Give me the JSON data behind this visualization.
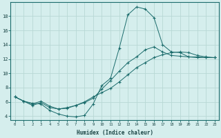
{
  "xlabel": "Humidex (Indice chaleur)",
  "bg_color": "#d5eeed",
  "line_color": "#1a6b6b",
  "grid_color": "#b8d8d5",
  "xlim_min": -0.5,
  "xlim_max": 23.5,
  "ylim_min": 3.5,
  "ylim_max": 20.0,
  "xticks": [
    0,
    1,
    2,
    3,
    4,
    5,
    6,
    7,
    8,
    9,
    10,
    11,
    12,
    13,
    14,
    15,
    16,
    17,
    18,
    19,
    20,
    21,
    22,
    23
  ],
  "yticks": [
    4,
    6,
    8,
    10,
    12,
    14,
    16,
    18
  ],
  "line1_x": [
    0,
    1,
    2,
    3,
    4,
    5,
    6,
    7,
    8,
    9,
    10,
    11,
    12,
    13,
    14,
    15,
    16,
    17,
    18,
    19,
    20,
    21,
    22,
    23
  ],
  "line1_y": [
    6.7,
    6.1,
    5.8,
    5.7,
    4.8,
    4.3,
    4.0,
    3.9,
    4.1,
    5.7,
    8.3,
    9.3,
    13.5,
    18.2,
    19.3,
    19.0,
    17.8,
    14.0,
    13.0,
    12.9,
    12.3,
    12.2,
    12.2,
    12.2
  ],
  "line2_x": [
    0,
    1,
    2,
    3,
    4,
    5,
    6,
    7,
    8,
    9,
    10,
    11,
    12,
    13,
    14,
    15,
    16,
    17,
    18,
    19,
    20,
    21,
    22,
    23
  ],
  "line2_y": [
    6.7,
    6.1,
    5.7,
    6.1,
    5.4,
    5.0,
    5.1,
    5.5,
    6.0,
    6.7,
    7.3,
    7.9,
    8.8,
    9.8,
    10.8,
    11.5,
    12.2,
    12.6,
    12.9,
    13.0,
    12.9,
    12.5,
    12.3,
    12.2
  ],
  "line3_x": [
    0,
    1,
    2,
    3,
    4,
    5,
    6,
    7,
    8,
    9,
    10,
    11,
    12,
    13,
    14,
    15,
    16,
    17,
    18,
    19,
    20,
    21,
    22,
    23
  ],
  "line3_y": [
    6.7,
    6.1,
    5.5,
    5.9,
    5.2,
    5.0,
    5.2,
    5.5,
    5.9,
    6.5,
    7.8,
    9.0,
    10.3,
    11.5,
    12.3,
    13.3,
    13.7,
    13.0,
    12.5,
    12.4,
    12.3,
    12.3,
    12.2,
    12.2
  ]
}
